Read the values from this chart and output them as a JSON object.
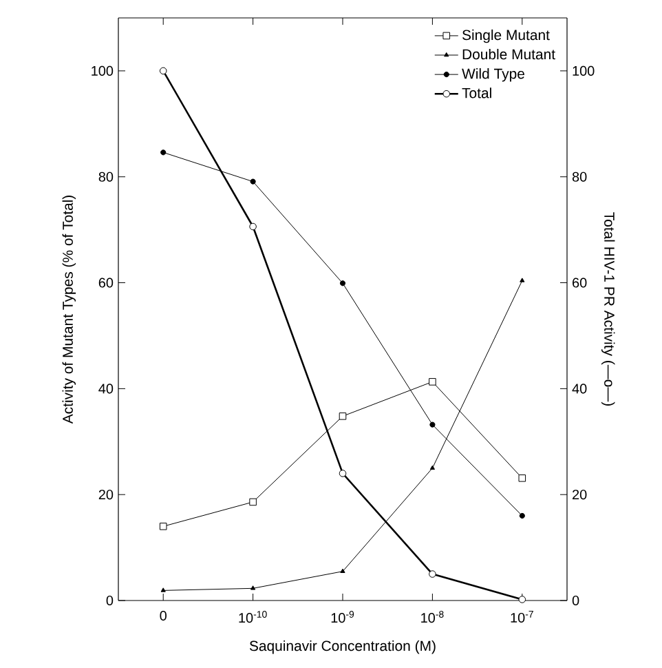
{
  "chart_data": {
    "type": "line",
    "xlabel": "Saquinavir Concentration (M)",
    "ylabel": "Activity of Mutant Types (% of Total)",
    "y2label": "Total HIV-1 PR Activity (—o—)",
    "categories": [
      "0",
      "10$^{-10}$",
      "10$^{-9}$",
      "10$^{-8}$",
      "10$^{-7}$"
    ],
    "ylim": [
      0,
      110
    ],
    "yticks": [
      0,
      20,
      40,
      60,
      80,
      100
    ],
    "y2lim": [
      0,
      110
    ],
    "y2ticks": [
      0,
      20,
      40,
      60,
      80,
      100
    ],
    "legend": "top right",
    "grid": false,
    "line_style": "solid",
    "series": [
      {
        "name": "Single Mutant",
        "color": "#000000",
        "marker": "square",
        "values": [
          14.0,
          18.6,
          34.8,
          41.3,
          23.1
        ]
      },
      {
        "name": "Double Mutant",
        "color": "#000000",
        "marker": "triangle",
        "values": [
          1.9,
          2.3,
          5.5,
          25.0,
          60.4
        ]
      },
      {
        "name": "Wild Type",
        "color": "#000000",
        "marker": "circle",
        "values": [
          84.6,
          79.1,
          59.9,
          33.2,
          16.0
        ]
      },
      {
        "name": "Total",
        "color": "#000000",
        "marker": "circle",
        "axis": "y2",
        "values": [
          100.0,
          70.6,
          24.0,
          5.0,
          0.2
        ]
      }
    ]
  }
}
